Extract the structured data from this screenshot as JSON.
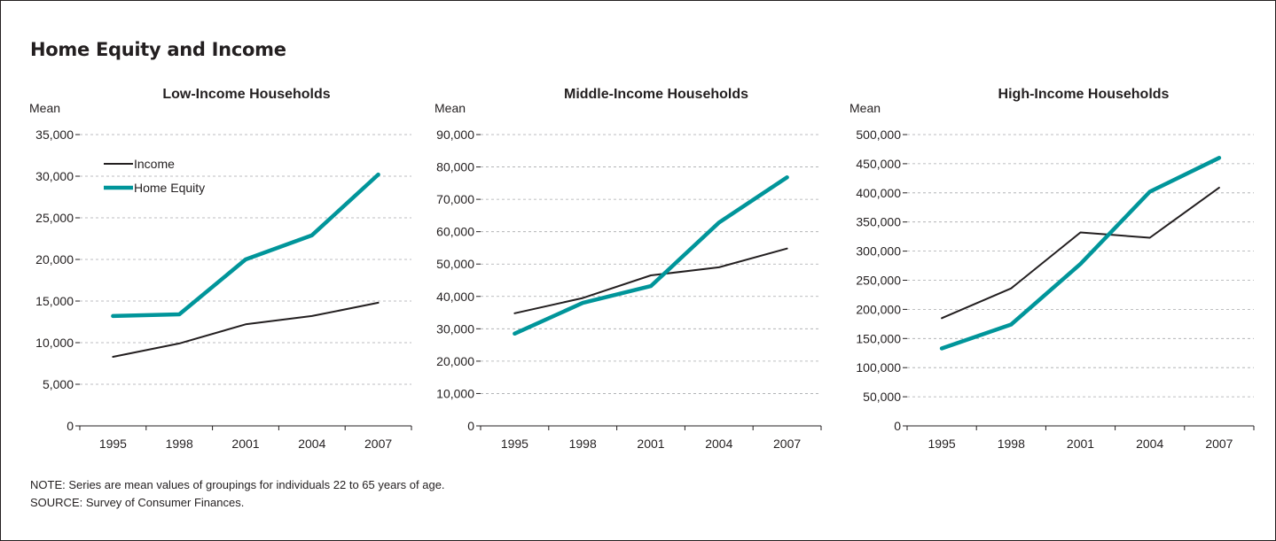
{
  "title": "Home Equity and Income",
  "note": "NOTE: Series are mean values of groupings for individuals 22 to 65 years of age.",
  "source": "SOURCE: Survey of Consumer Finances.",
  "colors": {
    "income": "#231f20",
    "home_equity": "#00959a",
    "grid": "#a7a9ac",
    "axis": "#231f20"
  },
  "chart_data": [
    {
      "type": "line",
      "title": "Low-Income Households",
      "ylabel": "Mean",
      "xlabel": "",
      "categories": [
        "1995",
        "1998",
        "2001",
        "2004",
        "2007"
      ],
      "ylim": [
        0,
        35000
      ],
      "yticks": [
        0,
        5000,
        10000,
        15000,
        20000,
        25000,
        30000,
        35000
      ],
      "ytick_labels": [
        "0",
        "5,000",
        "10,000",
        "15,000",
        "20,000",
        "25,000",
        "30,000",
        "35,000"
      ],
      "grid": true,
      "legend": "top-left",
      "series": [
        {
          "name": "Income",
          "values": [
            8300,
            9900,
            12200,
            13200,
            14800
          ]
        },
        {
          "name": "Home Equity",
          "values": [
            13200,
            13400,
            20000,
            22900,
            30200
          ]
        }
      ]
    },
    {
      "type": "line",
      "title": "Middle-Income Households",
      "ylabel": "Mean",
      "xlabel": "",
      "categories": [
        "1995",
        "1998",
        "2001",
        "2004",
        "2007"
      ],
      "ylim": [
        0,
        90000
      ],
      "yticks": [
        0,
        10000,
        20000,
        30000,
        40000,
        50000,
        60000,
        70000,
        80000,
        90000
      ],
      "ytick_labels": [
        "0",
        "10,000",
        "20,000",
        "30,000",
        "40,000",
        "50,000",
        "60,000",
        "70,000",
        "80,000",
        "90,000"
      ],
      "grid": true,
      "legend": "none",
      "series": [
        {
          "name": "Income",
          "values": [
            34800,
            39500,
            46500,
            49000,
            54800
          ]
        },
        {
          "name": "Home Equity",
          "values": [
            28500,
            38000,
            43200,
            62800,
            76800
          ]
        }
      ]
    },
    {
      "type": "line",
      "title": "High-Income Households",
      "ylabel": "Mean",
      "xlabel": "",
      "categories": [
        "1995",
        "1998",
        "2001",
        "2004",
        "2007"
      ],
      "ylim": [
        0,
        500000
      ],
      "yticks": [
        0,
        50000,
        100000,
        150000,
        200000,
        250000,
        300000,
        350000,
        400000,
        450000,
        500000
      ],
      "ytick_labels": [
        "0",
        "50,000",
        "100,000",
        "150,000",
        "200,000",
        "250,000",
        "300,000",
        "350,000",
        "400,000",
        "450,000",
        "500,000"
      ],
      "grid": true,
      "legend": "none",
      "series": [
        {
          "name": "Income",
          "values": [
            185000,
            236000,
            332000,
            323000,
            409000
          ]
        },
        {
          "name": "Home Equity",
          "values": [
            133000,
            174000,
            278000,
            402000,
            460000
          ]
        }
      ]
    }
  ]
}
